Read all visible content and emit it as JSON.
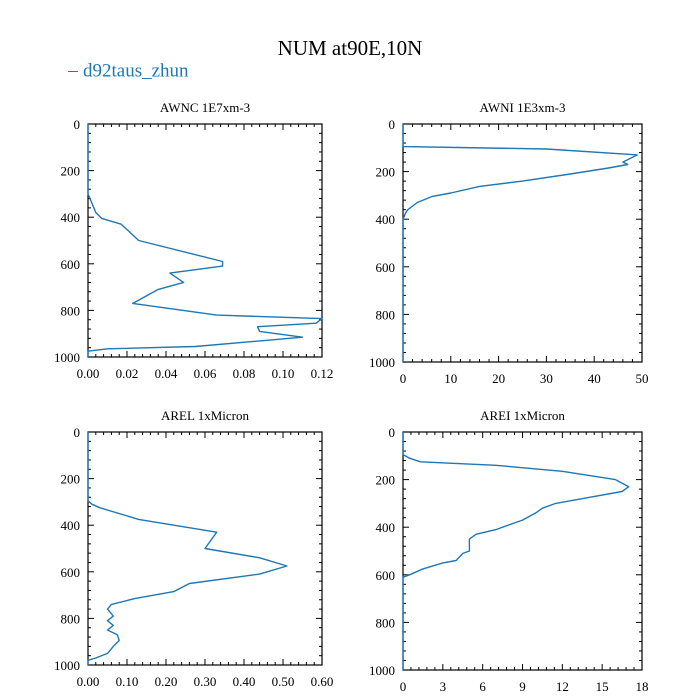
{
  "title": "NUM at90E,10N",
  "legend": {
    "label": "d92taus_zhun",
    "color": "#1f77b4"
  },
  "chart_data": [
    {
      "type": "line",
      "title": "AWNC  1E7xm-3",
      "xlim": [
        0,
        0.12
      ],
      "ylim": [
        1000,
        0
      ],
      "xticks": [
        0,
        0.02,
        0.04,
        0.06,
        0.08,
        0.1,
        0.12
      ],
      "xtick_labels": [
        "0.00",
        "0.02",
        "0.04",
        "0.06",
        "0.08",
        "0.10",
        "0.12"
      ],
      "yticks": [
        0,
        200,
        400,
        600,
        800,
        1000
      ],
      "ytick_labels": [
        "0",
        "200",
        "400",
        "600",
        "800",
        "1000"
      ],
      "series": [
        {
          "name": "d92taus_zhun",
          "x": [
            0,
            0,
            0.002,
            0.004,
            0.007,
            0.017,
            0.026,
            0.069,
            0.069,
            0.042,
            0.049,
            0.036,
            0.023,
            0.066,
            0.12,
            0.117,
            0.087,
            0.088,
            0.11,
            0.055,
            0.01,
            0,
            0
          ],
          "y": [
            0,
            300,
            340,
            380,
            405,
            430,
            500,
            590,
            610,
            640,
            680,
            710,
            770,
            820,
            835,
            855,
            870,
            890,
            915,
            955,
            965,
            975,
            1000
          ]
        }
      ]
    },
    {
      "type": "line",
      "title": "AWNI  1E3xm-3",
      "xlim": [
        0,
        50
      ],
      "ylim": [
        1000,
        0
      ],
      "xticks": [
        0,
        10,
        20,
        30,
        40,
        50
      ],
      "xtick_labels": [
        "0",
        "10",
        "20",
        "30",
        "40",
        "50"
      ],
      "yticks": [
        0,
        200,
        400,
        600,
        800,
        1000
      ],
      "ytick_labels": [
        "0",
        "200",
        "400",
        "600",
        "800",
        "1000"
      ],
      "series": [
        {
          "name": "d92taus_zhun",
          "x": [
            0,
            0,
            30,
            49,
            46,
            47,
            43,
            35,
            25,
            16,
            10,
            6,
            3,
            1,
            0.5,
            0,
            0
          ],
          "y": [
            0,
            95,
            105,
            130,
            160,
            170,
            185,
            210,
            240,
            262,
            290,
            305,
            330,
            360,
            375,
            400,
            1000
          ]
        }
      ]
    },
    {
      "type": "line",
      "title": "AREL  1xMicron",
      "xlim": [
        0,
        0.6
      ],
      "ylim": [
        1000,
        0
      ],
      "xticks": [
        0,
        0.1,
        0.2,
        0.3,
        0.4,
        0.5,
        0.6
      ],
      "xtick_labels": [
        "0.00",
        "0.10",
        "0.20",
        "0.30",
        "0.40",
        "0.50",
        "0.60"
      ],
      "yticks": [
        0,
        200,
        400,
        600,
        800,
        1000
      ],
      "ytick_labels": [
        "0",
        "200",
        "400",
        "600",
        "800",
        "1000"
      ],
      "series": [
        {
          "name": "d92taus_zhun",
          "x": [
            0,
            0,
            0.01,
            0.03,
            0.13,
            0.33,
            0.3,
            0.44,
            0.51,
            0.44,
            0.26,
            0.22,
            0.12,
            0.06,
            0.05,
            0.065,
            0.05,
            0.065,
            0.05,
            0.075,
            0.08,
            0.065,
            0.05,
            0.02,
            0,
            0
          ],
          "y": [
            0,
            295,
            310,
            325,
            375,
            430,
            500,
            540,
            575,
            610,
            650,
            685,
            715,
            740,
            760,
            790,
            810,
            830,
            850,
            870,
            895,
            920,
            950,
            970,
            980,
            1000
          ]
        }
      ]
    },
    {
      "type": "line",
      "title": "AREI  1xMicron",
      "xlim": [
        0,
        18
      ],
      "ylim": [
        1000,
        0
      ],
      "xticks": [
        0,
        3,
        6,
        9,
        12,
        15,
        18
      ],
      "xtick_labels": [
        "0",
        "3",
        "6",
        "9",
        "12",
        "15",
        "18"
      ],
      "yticks": [
        0,
        200,
        400,
        600,
        800,
        1000
      ],
      "ytick_labels": [
        "0",
        "200",
        "400",
        "600",
        "800",
        "1000"
      ],
      "series": [
        {
          "name": "d92taus_zhun",
          "x": [
            0,
            0,
            0.5,
            1.3,
            7,
            12,
            16,
            17,
            16.5,
            14,
            11.5,
            10.5,
            10,
            9,
            8.5,
            7,
            5.5,
            5,
            5,
            4.5,
            4,
            3,
            1.5,
            0.5,
            0,
            0
          ],
          "y": [
            0,
            95,
            110,
            125,
            140,
            165,
            200,
            230,
            250,
            275,
            300,
            320,
            340,
            370,
            380,
            410,
            430,
            450,
            500,
            510,
            540,
            550,
            575,
            600,
            610,
            1000
          ]
        }
      ]
    }
  ]
}
